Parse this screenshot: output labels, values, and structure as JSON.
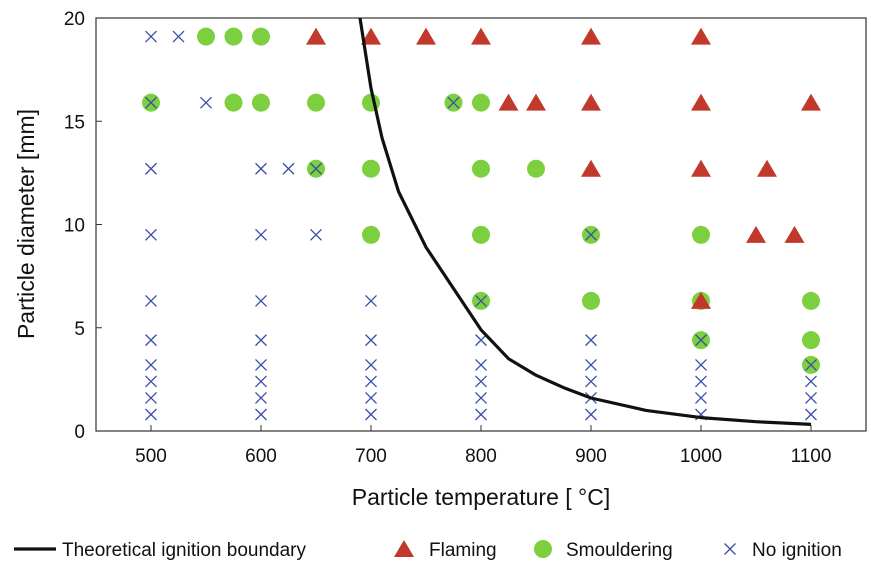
{
  "chart_data": {
    "type": "scatter",
    "xlabel": "Particle temperature [ °C]",
    "ylabel": "Particle diameter [mm]",
    "xlim": [
      450,
      1150
    ],
    "ylim": [
      0,
      20
    ],
    "xticks": [
      500,
      600,
      700,
      800,
      900,
      1000,
      1100
    ],
    "yticks": [
      0,
      5,
      10,
      15,
      20
    ],
    "grid": false,
    "legend_position": "bottom",
    "colors": {
      "boundary": "#111111",
      "flaming": "#c0392b",
      "smouldering": "#7ccf3e",
      "no_ignition": "#3a4ea8"
    },
    "series": [
      {
        "name": "Theoretical ignition boundary",
        "kind": "line",
        "points": [
          [
            690,
            20
          ],
          [
            700,
            16.6
          ],
          [
            710,
            14.2
          ],
          [
            725,
            11.6
          ],
          [
            750,
            8.9
          ],
          [
            775,
            6.9
          ],
          [
            800,
            4.9
          ],
          [
            825,
            3.5
          ],
          [
            850,
            2.7
          ],
          [
            875,
            2.1
          ],
          [
            900,
            1.6
          ],
          [
            950,
            1.0
          ],
          [
            1000,
            0.65
          ],
          [
            1050,
            0.45
          ],
          [
            1100,
            0.32
          ]
        ]
      },
      {
        "name": "Flaming",
        "kind": "triangle",
        "points": [
          [
            650,
            19.1
          ],
          [
            700,
            19.1
          ],
          [
            750,
            19.1
          ],
          [
            800,
            19.1
          ],
          [
            900,
            19.1
          ],
          [
            1000,
            19.1
          ],
          [
            825,
            15.9
          ],
          [
            850,
            15.9
          ],
          [
            900,
            15.9
          ],
          [
            1000,
            15.9
          ],
          [
            1100,
            15.9
          ],
          [
            900,
            12.7
          ],
          [
            1000,
            12.7
          ],
          [
            1060,
            12.7
          ],
          [
            1050,
            9.5
          ],
          [
            1085,
            9.5
          ],
          [
            1000,
            6.3
          ]
        ]
      },
      {
        "name": "Smouldering",
        "kind": "circle",
        "points": [
          [
            550,
            19.1
          ],
          [
            575,
            19.1
          ],
          [
            600,
            19.1
          ],
          [
            500,
            15.9
          ],
          [
            575,
            15.9
          ],
          [
            600,
            15.9
          ],
          [
            650,
            15.9
          ],
          [
            700,
            15.9
          ],
          [
            775,
            15.9
          ],
          [
            800,
            15.9
          ],
          [
            650,
            12.7
          ],
          [
            700,
            12.7
          ],
          [
            800,
            12.7
          ],
          [
            850,
            12.7
          ],
          [
            700,
            9.5
          ],
          [
            800,
            9.5
          ],
          [
            900,
            9.5
          ],
          [
            1000,
            9.5
          ],
          [
            800,
            6.3
          ],
          [
            900,
            6.3
          ],
          [
            1000,
            6.3
          ],
          [
            1100,
            6.3
          ],
          [
            1000,
            4.4
          ],
          [
            1100,
            4.4
          ],
          [
            1100,
            3.2
          ]
        ]
      },
      {
        "name": "No ignition",
        "kind": "x",
        "points": [
          [
            500,
            19.1
          ],
          [
            525,
            19.1
          ],
          [
            500,
            15.9
          ],
          [
            550,
            15.9
          ],
          [
            775,
            15.9
          ],
          [
            500,
            12.7
          ],
          [
            600,
            12.7
          ],
          [
            625,
            12.7
          ],
          [
            650,
            12.7
          ],
          [
            500,
            9.5
          ],
          [
            600,
            9.5
          ],
          [
            650,
            9.5
          ],
          [
            900,
            9.5
          ],
          [
            500,
            6.3
          ],
          [
            600,
            6.3
          ],
          [
            700,
            6.3
          ],
          [
            800,
            6.3
          ],
          [
            500,
            4.4
          ],
          [
            500,
            3.2
          ],
          [
            500,
            2.4
          ],
          [
            500,
            1.6
          ],
          [
            500,
            0.8
          ],
          [
            600,
            4.4
          ],
          [
            600,
            3.2
          ],
          [
            600,
            2.4
          ],
          [
            600,
            1.6
          ],
          [
            600,
            0.8
          ],
          [
            700,
            4.4
          ],
          [
            700,
            3.2
          ],
          [
            700,
            2.4
          ],
          [
            700,
            1.6
          ],
          [
            700,
            0.8
          ],
          [
            800,
            4.4
          ],
          [
            800,
            3.2
          ],
          [
            800,
            2.4
          ],
          [
            800,
            1.6
          ],
          [
            800,
            0.8
          ],
          [
            900,
            4.4
          ],
          [
            900,
            3.2
          ],
          [
            900,
            2.4
          ],
          [
            900,
            1.6
          ],
          [
            900,
            0.8
          ],
          [
            1000,
            4.4
          ],
          [
            1000,
            3.2
          ],
          [
            1000,
            2.4
          ],
          [
            1000,
            1.6
          ],
          [
            1000,
            0.8
          ],
          [
            1100,
            3.2
          ],
          [
            1100,
            2.4
          ],
          [
            1100,
            1.6
          ],
          [
            1100,
            0.8
          ]
        ]
      }
    ]
  }
}
